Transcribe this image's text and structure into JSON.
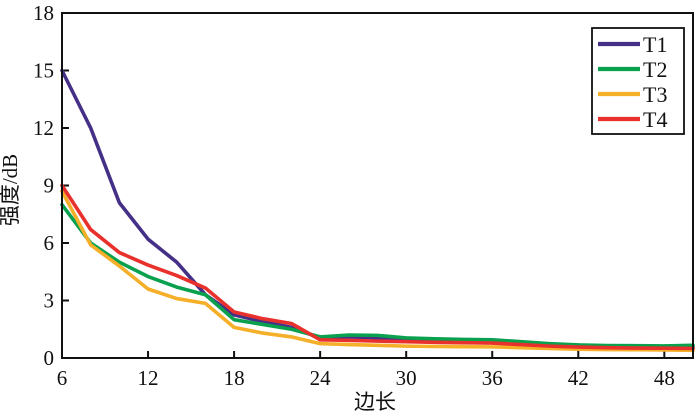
{
  "figure": {
    "background": "#ffffff",
    "axis_color": "#111111"
  },
  "chart_data": {
    "type": "line",
    "title": "",
    "xlabel": "边长",
    "ylabel": "强度/dB",
    "xlim": [
      6,
      50
    ],
    "ylim": [
      0,
      18
    ],
    "x_ticks": [
      6,
      12,
      18,
      24,
      30,
      36,
      42,
      48
    ],
    "y_ticks": [
      0,
      3,
      6,
      9,
      12,
      15,
      18
    ],
    "grid": false,
    "legend_position": "top-right",
    "line_width": 3.6,
    "x": [
      6,
      8,
      10,
      12,
      14,
      16,
      18,
      20,
      22,
      24,
      26,
      28,
      30,
      32,
      34,
      36,
      38,
      40,
      42,
      44,
      46,
      48,
      50
    ],
    "series": [
      {
        "name": "T1",
        "color": "#453087",
        "values": [
          15.0,
          12.0,
          8.1,
          6.2,
          5.0,
          3.3,
          2.25,
          1.9,
          1.6,
          1.05,
          1.1,
          1.05,
          1.0,
          0.97,
          0.95,
          0.92,
          0.82,
          0.73,
          0.67,
          0.62,
          0.58,
          0.56,
          0.55
        ]
      },
      {
        "name": "T2",
        "color": "#0aa14e",
        "values": [
          8.0,
          6.0,
          5.0,
          4.25,
          3.7,
          3.3,
          2.0,
          1.75,
          1.5,
          1.1,
          1.2,
          1.18,
          1.05,
          1.0,
          0.97,
          0.95,
          0.85,
          0.75,
          0.68,
          0.65,
          0.64,
          0.63,
          0.66
        ]
      },
      {
        "name": "T3",
        "color": "#f5af28",
        "values": [
          8.7,
          5.9,
          4.8,
          3.6,
          3.1,
          2.85,
          1.6,
          1.3,
          1.1,
          0.75,
          0.7,
          0.66,
          0.62,
          0.6,
          0.59,
          0.58,
          0.54,
          0.5,
          0.46,
          0.44,
          0.43,
          0.42,
          0.4
        ]
      },
      {
        "name": "T4",
        "color": "#e8312d",
        "values": [
          9.0,
          6.7,
          5.5,
          4.85,
          4.3,
          3.65,
          2.4,
          2.05,
          1.8,
          0.95,
          0.92,
          0.88,
          0.85,
          0.82,
          0.8,
          0.78,
          0.7,
          0.62,
          0.57,
          0.54,
          0.52,
          0.51,
          0.5
        ]
      }
    ]
  }
}
